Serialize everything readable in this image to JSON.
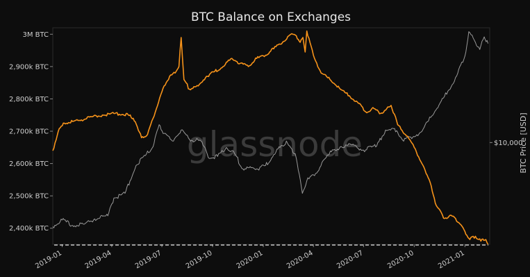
{
  "chart_data": {
    "type": "line",
    "title": "BTC Balance on Exchanges",
    "watermark": "glassnode",
    "y_left": {
      "ylim": [
        2350000,
        3020000
      ],
      "ticks": [
        {
          "value": 2400000,
          "label": "2,400k BTC"
        },
        {
          "value": 2500000,
          "label": "2,500k BTC"
        },
        {
          "value": 2600000,
          "label": "2,600k BTC"
        },
        {
          "value": 2700000,
          "label": "2,700k BTC"
        },
        {
          "value": 2800000,
          "label": "2,800k BTC"
        },
        {
          "value": 2900000,
          "label": "2,900k BTC"
        },
        {
          "value": 3000000,
          "label": "3M BTC"
        }
      ]
    },
    "y_right": {
      "label": "BTC Price [USD]",
      "scale": "log",
      "ylim": [
        2800,
        42000
      ],
      "ticks": [
        {
          "value": 10000,
          "label": "$10,000"
        }
      ]
    },
    "x": {
      "range": [
        "2018-12-15",
        "2021-02-15"
      ],
      "ticks": [
        {
          "date": "2019-01-01",
          "label": "2019-01"
        },
        {
          "date": "2019-04-01",
          "label": "2019-04"
        },
        {
          "date": "2019-07-01",
          "label": "2019-07"
        },
        {
          "date": "2019-10-01",
          "label": "2019-10"
        },
        {
          "date": "2020-01-01",
          "label": "2020-01"
        },
        {
          "date": "2020-04-01",
          "label": "2020-04"
        },
        {
          "date": "2020-07-01",
          "label": "2020-07"
        },
        {
          "date": "2020-10-01",
          "label": "2020-10"
        },
        {
          "date": "2021-01-01",
          "label": "2021-01"
        }
      ]
    },
    "reference_line": {
      "value": 2348000,
      "style": "dashed"
    },
    "series": [
      {
        "axis": "left",
        "color": "#f7931a",
        "points": [
          [
            "2018-12-15",
            2640000
          ],
          [
            "2018-12-25",
            2700000
          ],
          [
            "2019-01-05",
            2725000
          ],
          [
            "2019-01-20",
            2730000
          ],
          [
            "2019-02-05",
            2735000
          ],
          [
            "2019-02-25",
            2745000
          ],
          [
            "2019-03-15",
            2750000
          ],
          [
            "2019-04-05",
            2755000
          ],
          [
            "2019-04-20",
            2752000
          ],
          [
            "2019-05-01",
            2750000
          ],
          [
            "2019-05-10",
            2740000
          ],
          [
            "2019-05-25",
            2680000
          ],
          [
            "2019-06-05",
            2690000
          ],
          [
            "2019-06-15",
            2740000
          ],
          [
            "2019-06-25",
            2790000
          ],
          [
            "2019-07-05",
            2840000
          ],
          [
            "2019-07-15",
            2870000
          ],
          [
            "2019-07-25",
            2880000
          ],
          [
            "2019-08-01",
            2900000
          ],
          [
            "2019-08-05",
            2990000
          ],
          [
            "2019-08-10",
            2860000
          ],
          [
            "2019-08-20",
            2830000
          ],
          [
            "2019-09-05",
            2840000
          ],
          [
            "2019-09-20",
            2870000
          ],
          [
            "2019-10-05",
            2885000
          ],
          [
            "2019-10-20",
            2900000
          ],
          [
            "2019-11-05",
            2925000
          ],
          [
            "2019-11-20",
            2910000
          ],
          [
            "2019-12-05",
            2900000
          ],
          [
            "2019-12-20",
            2925000
          ],
          [
            "2020-01-05",
            2935000
          ],
          [
            "2020-01-20",
            2955000
          ],
          [
            "2020-02-05",
            2975000
          ],
          [
            "2020-02-20",
            3000000
          ],
          [
            "2020-03-01",
            2995000
          ],
          [
            "2020-03-08",
            2975000
          ],
          [
            "2020-03-13",
            2990000
          ],
          [
            "2020-03-17",
            2945000
          ],
          [
            "2020-03-20",
            3010000
          ],
          [
            "2020-04-01",
            2935000
          ],
          [
            "2020-04-15",
            2880000
          ],
          [
            "2020-05-01",
            2860000
          ],
          [
            "2020-05-20",
            2830000
          ],
          [
            "2020-06-05",
            2810000
          ],
          [
            "2020-06-20",
            2790000
          ],
          [
            "2020-07-05",
            2760000
          ],
          [
            "2020-07-20",
            2770000
          ],
          [
            "2020-08-01",
            2755000
          ],
          [
            "2020-08-10",
            2765000
          ],
          [
            "2020-08-20",
            2780000
          ],
          [
            "2020-09-01",
            2720000
          ],
          [
            "2020-09-15",
            2690000
          ],
          [
            "2020-10-01",
            2650000
          ],
          [
            "2020-10-15",
            2600000
          ],
          [
            "2020-11-01",
            2530000
          ],
          [
            "2020-11-10",
            2470000
          ],
          [
            "2020-11-25",
            2430000
          ],
          [
            "2020-12-05",
            2440000
          ],
          [
            "2020-12-15",
            2430000
          ],
          [
            "2020-12-25",
            2410000
          ],
          [
            "2021-01-01",
            2390000
          ],
          [
            "2021-01-10",
            2365000
          ],
          [
            "2021-01-20",
            2375000
          ],
          [
            "2021-01-30",
            2360000
          ],
          [
            "2021-02-08",
            2365000
          ],
          [
            "2021-02-12",
            2350000
          ]
        ]
      },
      {
        "axis": "right",
        "color": "#9a9a9a",
        "points": [
          [
            "2018-12-15",
            3500
          ],
          [
            "2019-01-01",
            3800
          ],
          [
            "2019-01-20",
            3550
          ],
          [
            "2019-02-10",
            3600
          ],
          [
            "2019-03-01",
            3850
          ],
          [
            "2019-03-25",
            4000
          ],
          [
            "2019-04-05",
            5000
          ],
          [
            "2019-04-25",
            5300
          ],
          [
            "2019-05-15",
            7500
          ],
          [
            "2019-06-01",
            8500
          ],
          [
            "2019-06-15",
            9500
          ],
          [
            "2019-06-26",
            12500
          ],
          [
            "2019-07-05",
            11200
          ],
          [
            "2019-07-20",
            10200
          ],
          [
            "2019-08-05",
            11700
          ],
          [
            "2019-08-20",
            10400
          ],
          [
            "2019-09-10",
            10200
          ],
          [
            "2019-09-25",
            8200
          ],
          [
            "2019-10-10",
            8400
          ],
          [
            "2019-10-26",
            9400
          ],
          [
            "2019-11-10",
            8700
          ],
          [
            "2019-11-25",
            7200
          ],
          [
            "2019-12-10",
            7300
          ],
          [
            "2019-12-20",
            7200
          ],
          [
            "2020-01-05",
            7500
          ],
          [
            "2020-01-20",
            8600
          ],
          [
            "2020-02-12",
            10200
          ],
          [
            "2020-02-28",
            8700
          ],
          [
            "2020-03-12",
            5300
          ],
          [
            "2020-03-20",
            6200
          ],
          [
            "2020-04-05",
            6800
          ],
          [
            "2020-04-30",
            8700
          ],
          [
            "2020-05-20",
            9500
          ],
          [
            "2020-06-10",
            9700
          ],
          [
            "2020-07-01",
            9100
          ],
          [
            "2020-07-25",
            9600
          ],
          [
            "2020-08-10",
            11700
          ],
          [
            "2020-08-30",
            11600
          ],
          [
            "2020-09-10",
            10300
          ],
          [
            "2020-09-30",
            10800
          ],
          [
            "2020-10-15",
            11500
          ],
          [
            "2020-10-31",
            13700
          ],
          [
            "2020-11-15",
            16000
          ],
          [
            "2020-12-01",
            19000
          ],
          [
            "2020-12-17",
            23000
          ],
          [
            "2021-01-01",
            29500
          ],
          [
            "2021-01-08",
            40000
          ],
          [
            "2021-01-18",
            36000
          ],
          [
            "2021-01-28",
            32000
          ],
          [
            "2021-02-05",
            37500
          ],
          [
            "2021-02-12",
            34500
          ]
        ]
      }
    ]
  }
}
